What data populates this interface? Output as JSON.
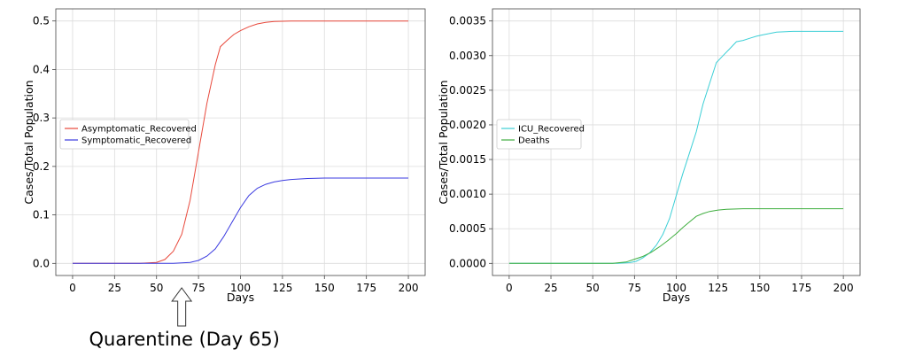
{
  "annotation": {
    "text": "Quarentine (Day 65)",
    "x": 65
  },
  "chart_data": [
    {
      "type": "line",
      "xlabel": "Days",
      "ylabel": "Cases/Total Population",
      "xlim": [
        -10,
        210
      ],
      "ylim": [
        -0.025,
        0.525
      ],
      "xticks": [
        0,
        25,
        50,
        75,
        100,
        125,
        150,
        175,
        200
      ],
      "yticks": [
        0.0,
        0.1,
        0.2,
        0.3,
        0.4,
        0.5
      ],
      "ytick_labels": [
        "0.0",
        "0.1",
        "0.2",
        "0.3",
        "0.4",
        "0.5"
      ],
      "grid": true,
      "legend": "center-left",
      "series": [
        {
          "name": "Asymptomatic_Recovered",
          "color": "#e8483b",
          "x": [
            0,
            40,
            50,
            55,
            60,
            65,
            70,
            75,
            80,
            85,
            88,
            92,
            96,
            100,
            105,
            110,
            115,
            120,
            130,
            140,
            150,
            160,
            175,
            200
          ],
          "y": [
            0,
            0,
            0.002,
            0.008,
            0.025,
            0.06,
            0.13,
            0.23,
            0.33,
            0.41,
            0.447,
            0.46,
            0.472,
            0.48,
            0.488,
            0.494,
            0.497,
            0.499,
            0.5,
            0.5,
            0.5,
            0.5,
            0.5,
            0.5
          ]
        },
        {
          "name": "Symptomatic_Recovered",
          "color": "#3b3be0",
          "x": [
            0,
            60,
            70,
            75,
            80,
            85,
            90,
            95,
            100,
            105,
            110,
            115,
            120,
            125,
            130,
            140,
            150,
            160,
            175,
            200
          ],
          "y": [
            0,
            0,
            0.002,
            0.006,
            0.015,
            0.03,
            0.055,
            0.085,
            0.115,
            0.14,
            0.155,
            0.163,
            0.168,
            0.171,
            0.173,
            0.175,
            0.176,
            0.176,
            0.176,
            0.176
          ]
        }
      ]
    },
    {
      "type": "line",
      "xlabel": "Days",
      "ylabel": "Cases/Total Population",
      "xlim": [
        -10,
        210
      ],
      "ylim": [
        -0.000175,
        0.003675
      ],
      "xticks": [
        0,
        25,
        50,
        75,
        100,
        125,
        150,
        175,
        200
      ],
      "yticks": [
        0.0,
        0.0005,
        0.001,
        0.0015,
        0.002,
        0.0025,
        0.003,
        0.0035
      ],
      "ytick_labels": [
        "0.0000",
        "0.0005",
        "0.0010",
        "0.0015",
        "0.0020",
        "0.0025",
        "0.0030",
        "0.0035"
      ],
      "grid": true,
      "legend": "center-left",
      "series": [
        {
          "name": "ICU_Recovered",
          "color": "#3ccfd6",
          "x": [
            0,
            65,
            72,
            76,
            80,
            84,
            88,
            92,
            96,
            100,
            104,
            108,
            112,
            116,
            120,
            124,
            128,
            132,
            136,
            140,
            144,
            148,
            152,
            160,
            170,
            200
          ],
          "y": [
            0,
            0,
            1e-05,
            3e-05,
            8e-05,
            0.00015,
            0.00026,
            0.00042,
            0.00065,
            0.00098,
            0.0013,
            0.0016,
            0.0019,
            0.0023,
            0.0026,
            0.0029,
            0.003,
            0.0031,
            0.0032,
            0.00322,
            0.00325,
            0.00328,
            0.0033,
            0.00334,
            0.00335,
            0.00335
          ]
        },
        {
          "name": "Deaths",
          "color": "#3fae3f",
          "x": [
            0,
            62,
            70,
            75,
            80,
            85,
            90,
            95,
            100,
            104,
            108,
            112,
            116,
            120,
            125,
            130,
            140,
            150,
            175,
            200
          ],
          "y": [
            0,
            0,
            2e-05,
            6e-05,
            0.0001,
            0.00016,
            0.00024,
            0.00033,
            0.00043,
            0.00052,
            0.0006,
            0.00068,
            0.00072,
            0.00075,
            0.00077,
            0.00078,
            0.00079,
            0.00079,
            0.00079,
            0.00079
          ]
        }
      ]
    }
  ]
}
